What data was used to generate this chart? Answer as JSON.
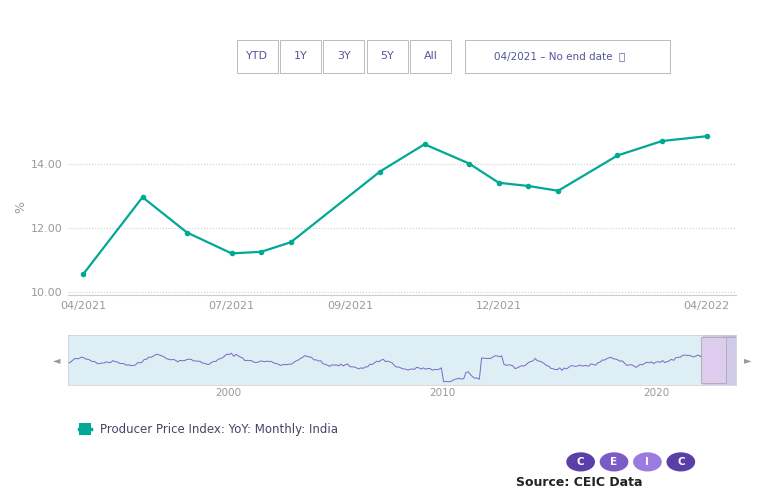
{
  "title_buttons": [
    "YTD",
    "1Y",
    "3Y",
    "5Y",
    "All"
  ],
  "date_range_text": "04/2021 – No end date",
  "x_labels": [
    "04/2021",
    "07/2021",
    "09/2021",
    "12/2021",
    "04/2022"
  ],
  "x_values": [
    0,
    2,
    3.5,
    5,
    6,
    7,
    10,
    11.5,
    13,
    14,
    15,
    16,
    18,
    19.5,
    21
  ],
  "y_values": [
    10.55,
    12.95,
    11.85,
    11.2,
    11.25,
    11.55,
    13.75,
    14.6,
    14.0,
    13.4,
    13.3,
    13.15,
    14.25,
    14.7,
    14.85
  ],
  "line_color": "#00a896",
  "marker_color": "#00a896",
  "y_ticks": [
    10.0,
    12.0,
    14.0
  ],
  "y_tick_labels": [
    "10.00",
    "12.00",
    "14.00"
  ],
  "ylim": [
    9.9,
    15.4
  ],
  "ylabel": "%",
  "xtick_positions": [
    0,
    5,
    9,
    14,
    21
  ],
  "legend_label": "Producer Price Index: YoY: Monthly: India",
  "legend_color": "#00a896",
  "minimap_line_color": "#7b68c8",
  "minimap_fill_color": "#ddeef5",
  "minimap_highlight_color": "#c8b4e0",
  "minimap_x_labels": [
    "2000",
    "2010",
    "2020"
  ],
  "source_text": "Source: CEIC Data",
  "background_color": "#ffffff",
  "grid_color": "#cccccc",
  "button_border_color": "#bbbbbb",
  "button_text_color": "#555599",
  "axis_label_color": "#999999",
  "ceic_colors": [
    "#5b3fa8",
    "#7b5bc8",
    "#9b7be0",
    "#5b3fa8"
  ]
}
